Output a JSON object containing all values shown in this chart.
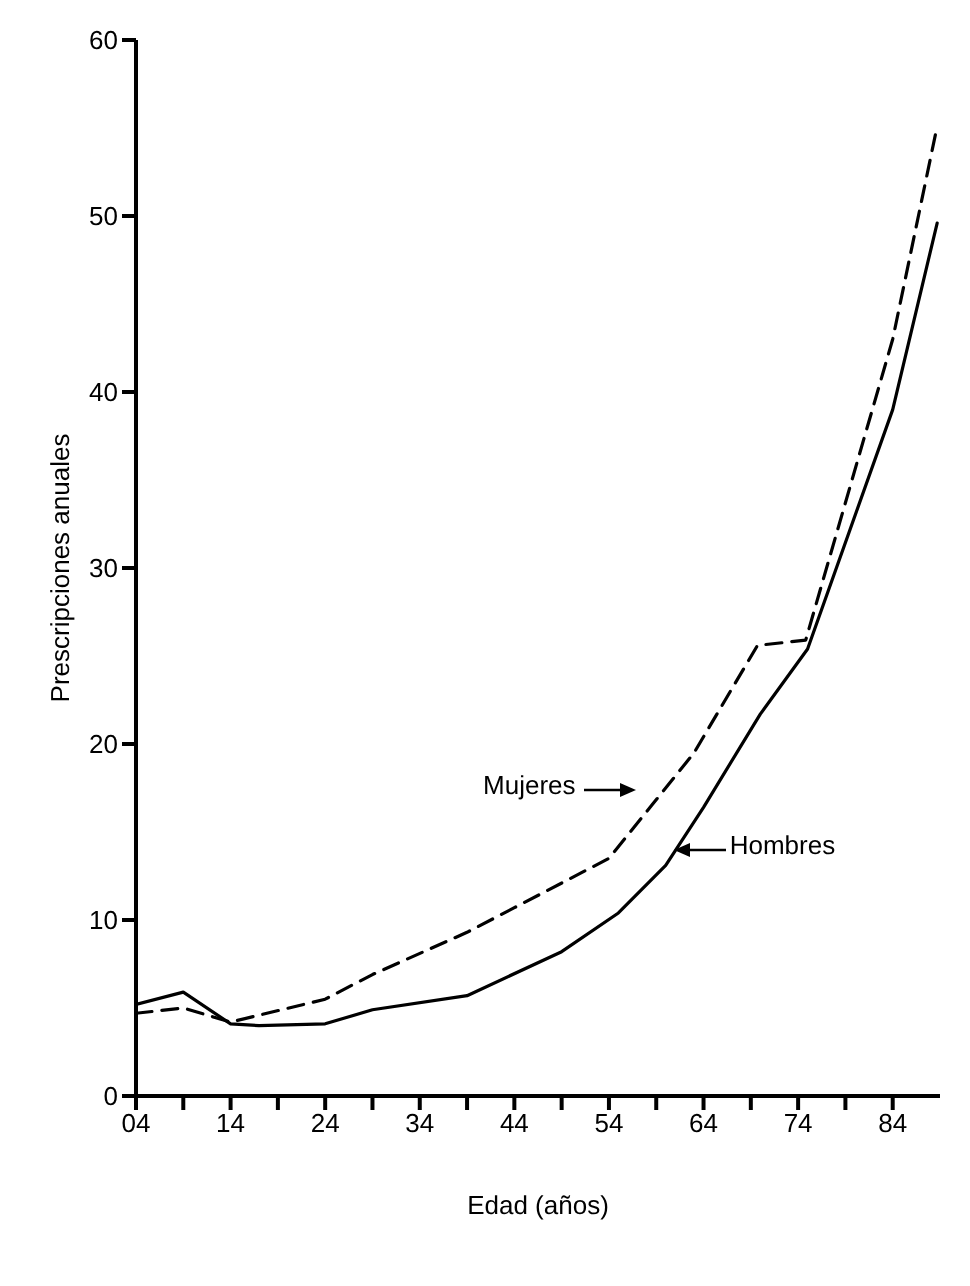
{
  "chart_data": {
    "type": "line",
    "xlabel": "Edad (años)",
    "ylabel": "Prescripciones anuales",
    "xlim": [
      4,
      89
    ],
    "ylim": [
      0,
      60
    ],
    "xticks": [
      {
        "value": 4,
        "label": "04"
      },
      {
        "value": 9,
        "label": null
      },
      14,
      {
        "value": 19,
        "label": null
      },
      24,
      {
        "value": 29,
        "label": null
      },
      34,
      {
        "value": 39,
        "label": null
      },
      44,
      {
        "value": 49,
        "label": null
      },
      54,
      {
        "value": 59,
        "label": null
      },
      64,
      {
        "value": 69,
        "label": null
      },
      74,
      {
        "value": 79,
        "label": null
      },
      84
    ],
    "yticks": [
      0,
      10,
      20,
      30,
      40,
      50,
      60
    ],
    "marker": "none",
    "series": [
      {
        "name": "Mujeres",
        "color": "#000000",
        "line_style": "dashed",
        "x": [
          4,
          9,
          14,
          24,
          29,
          39,
          44,
          54,
          58.5,
          63,
          69.7,
          74.8,
          84,
          88.7
        ],
        "values": [
          4.7,
          5.0,
          4.2,
          5.5,
          6.9,
          9.3,
          10.7,
          13.5,
          16.5,
          19.5,
          25.6,
          25.9,
          43,
          55.1
        ]
      },
      {
        "name": "Hombres",
        "color": "#000000",
        "line_style": "solid",
        "x": [
          4,
          9,
          14,
          17,
          24,
          29,
          39,
          49,
          55,
          60,
          64,
          70,
          75,
          84,
          88.7
        ],
        "values": [
          5.2,
          5.9,
          4.1,
          4.0,
          4.1,
          4.9,
          5.7,
          8.2,
          10.4,
          13.1,
          16.4,
          21.7,
          25.4,
          39,
          49.6
        ]
      }
    ]
  }
}
